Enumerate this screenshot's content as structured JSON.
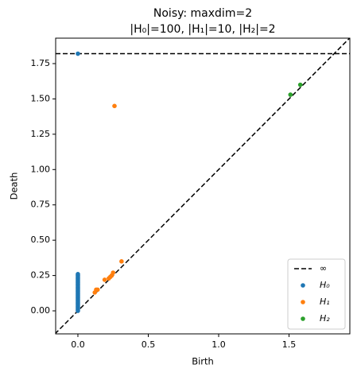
{
  "chart_data": {
    "type": "scatter",
    "title": "Noisy: maxdim=2",
    "subtitle": "|H₀|=100, |H₁|=10, |H₂|=2",
    "x_label": "Birth",
    "y_label": "Death",
    "xlim": [
      -0.158,
      1.932
    ],
    "ylim": [
      -0.163,
      1.93
    ],
    "xticks": [
      {
        "value": 0,
        "label": "0.0"
      },
      {
        "value": 0.5,
        "label": "0.5"
      },
      {
        "value": 1,
        "label": "1.0"
      },
      {
        "value": 1.5,
        "label": "1.5"
      }
    ],
    "yticks": [
      {
        "value": 0,
        "label": "0.00"
      },
      {
        "value": 0.25,
        "label": "0.25"
      },
      {
        "value": 0.5,
        "label": "0.50"
      },
      {
        "value": 0.75,
        "label": "0.75"
      },
      {
        "value": 1,
        "label": "1.00"
      },
      {
        "value": 1.25,
        "label": "1.25"
      },
      {
        "value": 1.5,
        "label": "1.50"
      },
      {
        "value": 1.75,
        "label": "1.75"
      }
    ],
    "inf_line": {
      "name": "∞",
      "value": 1.82
    },
    "legend": "lower right",
    "series": [
      {
        "name": "H₀",
        "color": "#1f77b4",
        "x": [
          0,
          0,
          0,
          0,
          0,
          0,
          0,
          0,
          0,
          0,
          0,
          0,
          0,
          0,
          0,
          0,
          0,
          0,
          0,
          0,
          0,
          0,
          0,
          0,
          0,
          0,
          0,
          0
        ],
        "y": [
          0.0,
          0.01,
          0.02,
          0.03,
          0.04,
          0.05,
          0.06,
          0.07,
          0.08,
          0.09,
          0.1,
          0.11,
          0.12,
          0.13,
          0.14,
          0.15,
          0.16,
          0.17,
          0.18,
          0.19,
          0.2,
          0.21,
          0.22,
          0.23,
          0.24,
          0.25,
          0.26,
          1.82
        ]
      },
      {
        "name": "H₁",
        "color": "#ff7f0e",
        "x": [
          0.26,
          0.31,
          0.25,
          0.24,
          0.23,
          0.22,
          0.19,
          0.13,
          0.12,
          0.14
        ],
        "y": [
          1.45,
          0.35,
          0.27,
          0.25,
          0.24,
          0.23,
          0.22,
          0.15,
          0.13,
          0.15
        ]
      },
      {
        "name": "H₂",
        "color": "#2ca02c",
        "x": [
          1.51,
          1.58
        ],
        "y": [
          1.53,
          1.6
        ]
      }
    ]
  }
}
